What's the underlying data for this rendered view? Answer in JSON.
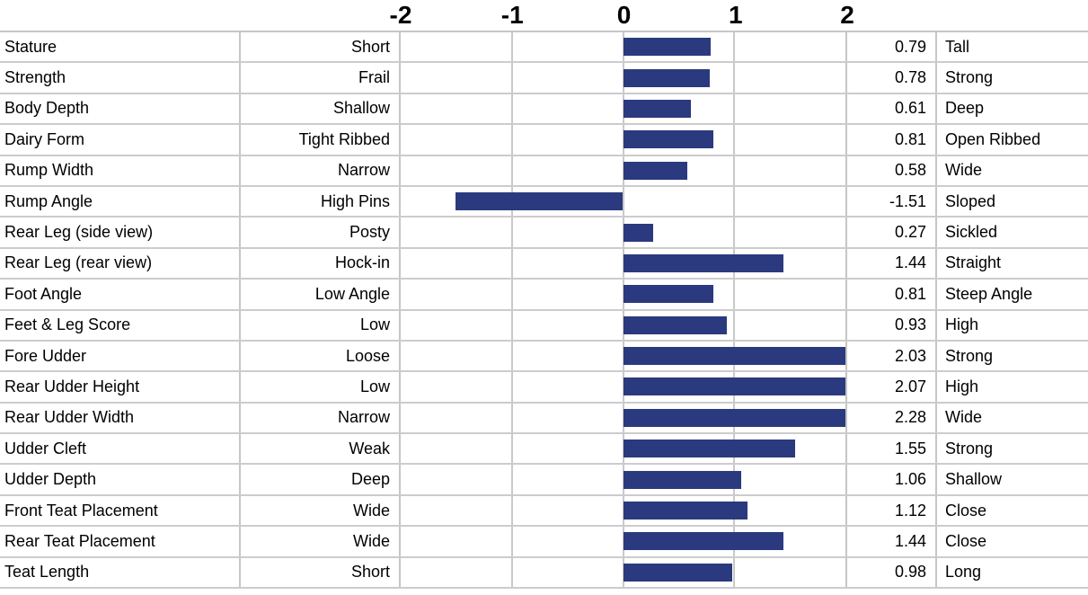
{
  "chart_data": {
    "type": "bar",
    "orientation": "horizontal",
    "title": "",
    "axis_ticks": [
      "-2",
      "-1",
      "0",
      "1",
      "2"
    ],
    "x_range": [
      -2,
      2
    ],
    "grid": true,
    "bar_color": "#2b3a7e",
    "gridline_color": "#c9c9c9",
    "rows": [
      {
        "trait": "Stature",
        "low": "Short",
        "value": 0.79,
        "high": "Tall"
      },
      {
        "trait": "Strength",
        "low": "Frail",
        "value": 0.78,
        "high": "Strong"
      },
      {
        "trait": "Body Depth",
        "low": "Shallow",
        "value": 0.61,
        "high": "Deep"
      },
      {
        "trait": "Dairy Form",
        "low": "Tight Ribbed",
        "value": 0.81,
        "high": "Open Ribbed"
      },
      {
        "trait": "Rump Width",
        "low": "Narrow",
        "value": 0.58,
        "high": "Wide"
      },
      {
        "trait": "Rump Angle",
        "low": "High Pins",
        "value": -1.51,
        "high": "Sloped"
      },
      {
        "trait": "Rear Leg (side view)",
        "low": "Posty",
        "value": 0.27,
        "high": "Sickled"
      },
      {
        "trait": "Rear Leg (rear view)",
        "low": "Hock-in",
        "value": 1.44,
        "high": "Straight"
      },
      {
        "trait": "Foot Angle",
        "low": "Low Angle",
        "value": 0.81,
        "high": "Steep Angle"
      },
      {
        "trait": "Feet & Leg Score",
        "low": "Low",
        "value": 0.93,
        "high": "High"
      },
      {
        "trait": "Fore Udder",
        "low": "Loose",
        "value": 2.03,
        "high": "Strong"
      },
      {
        "trait": "Rear Udder Height",
        "low": "Low",
        "value": 2.07,
        "high": "High"
      },
      {
        "trait": "Rear Udder Width",
        "low": "Narrow",
        "value": 2.28,
        "high": "Wide"
      },
      {
        "trait": "Udder Cleft",
        "low": "Weak",
        "value": 1.55,
        "high": "Strong"
      },
      {
        "trait": "Udder Depth",
        "low": "Deep",
        "value": 1.06,
        "high": "Shallow"
      },
      {
        "trait": "Front Teat Placement",
        "low": "Wide",
        "value": 1.12,
        "high": "Close"
      },
      {
        "trait": "Rear Teat Placement",
        "low": "Wide",
        "value": 1.44,
        "high": "Close"
      },
      {
        "trait": "Teat Length",
        "low": "Short",
        "value": 0.98,
        "high": "Long"
      }
    ]
  }
}
